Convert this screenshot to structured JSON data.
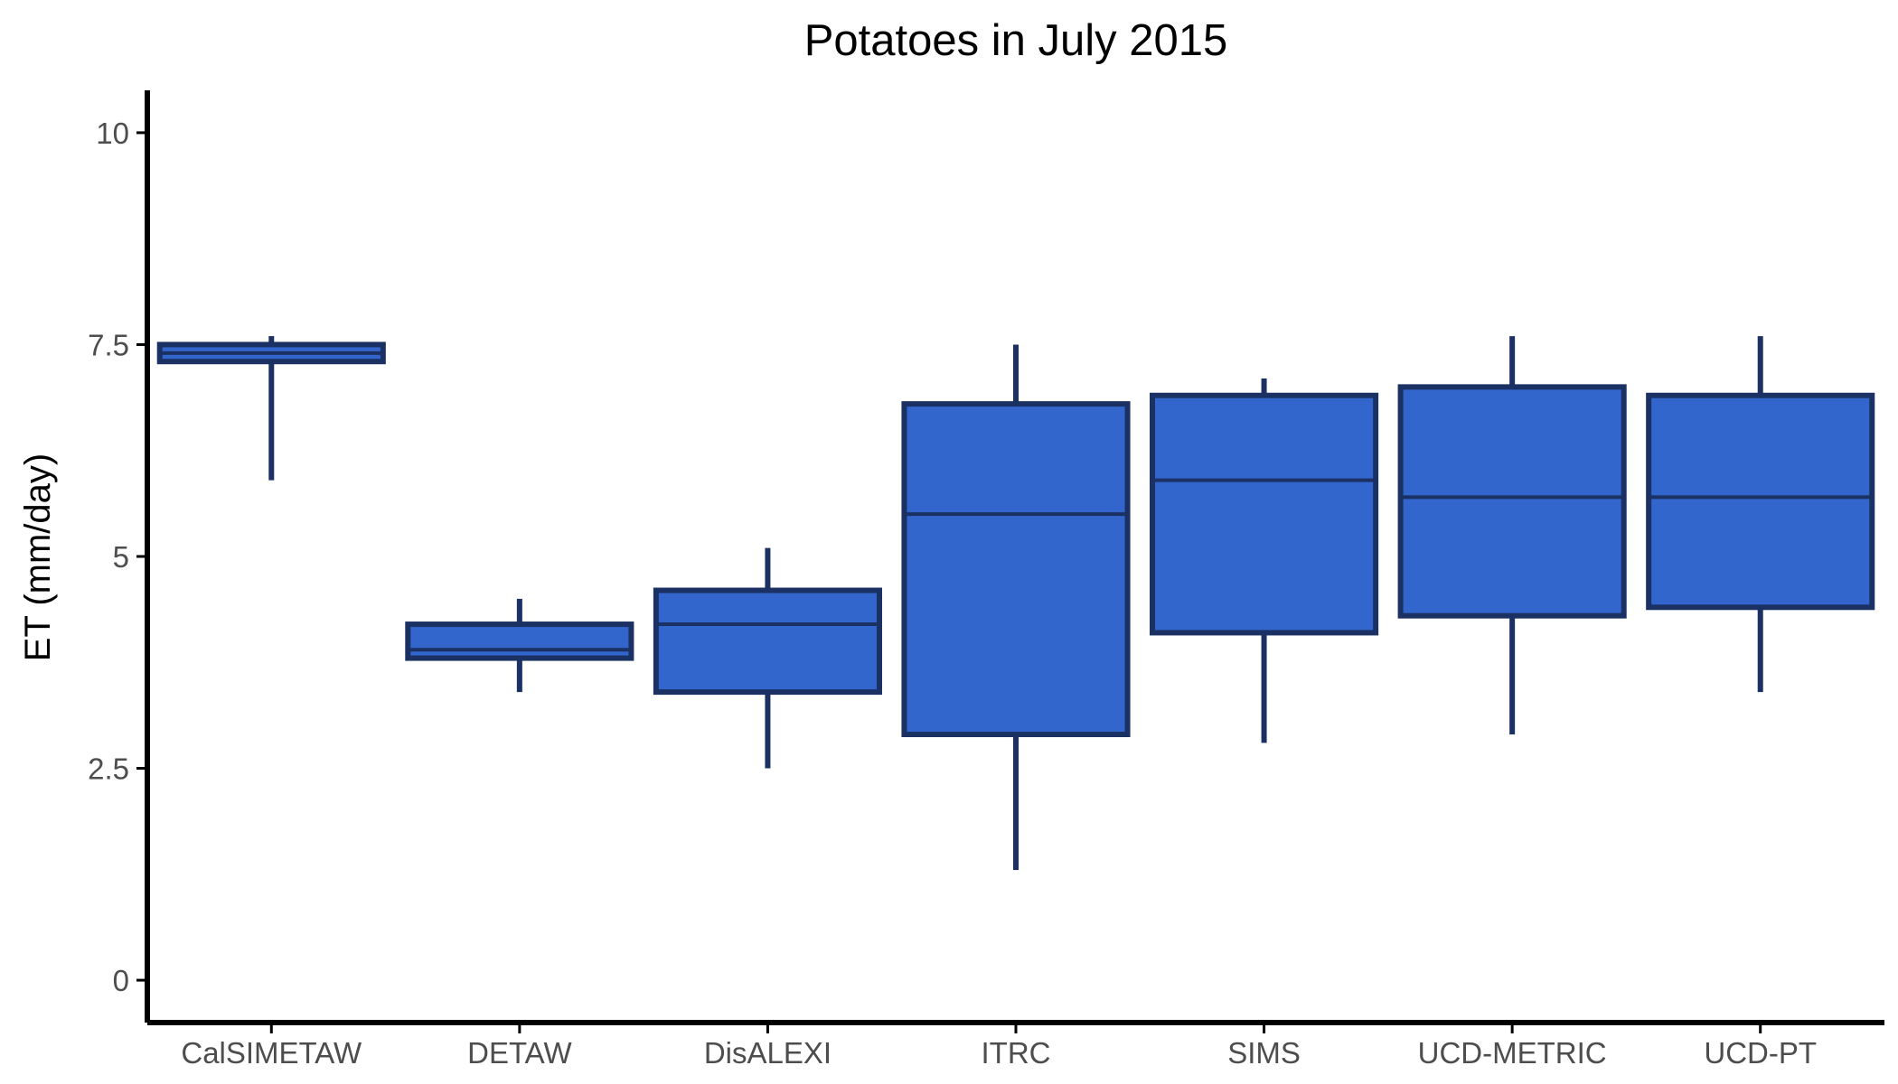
{
  "chart_data": {
    "type": "boxplot",
    "title": "Potatoes in July 2015",
    "xlabel": "",
    "ylabel": "ET (mm/day)",
    "ylim": [
      -0.5,
      10.5
    ],
    "yticks": [
      0,
      2.5,
      5,
      7.5,
      10
    ],
    "ytick_labels": [
      "0",
      "2.5",
      "5",
      "7.5",
      "10"
    ],
    "grid": false,
    "legend": "none",
    "categories": [
      "CalSIMETAW",
      "DETAW",
      "DisALEXI",
      "ITRC",
      "SIMS",
      "UCD-METRIC",
      "UCD-PT"
    ],
    "boxes": [
      {
        "category": "CalSIMETAW",
        "whisker_low": 5.9,
        "q1": 7.3,
        "median": 7.4,
        "q3": 7.5,
        "whisker_high": 7.6
      },
      {
        "category": "DETAW",
        "whisker_low": 3.4,
        "q1": 3.8,
        "median": 3.9,
        "q3": 4.2,
        "whisker_high": 4.5
      },
      {
        "category": "DisALEXI",
        "whisker_low": 2.5,
        "q1": 3.4,
        "median": 4.2,
        "q3": 4.6,
        "whisker_high": 5.1
      },
      {
        "category": "ITRC",
        "whisker_low": 1.3,
        "q1": 2.9,
        "median": 5.5,
        "q3": 6.8,
        "whisker_high": 7.5
      },
      {
        "category": "SIMS",
        "whisker_low": 2.8,
        "q1": 4.1,
        "median": 5.9,
        "q3": 6.9,
        "whisker_high": 7.1
      },
      {
        "category": "UCD-METRIC",
        "whisker_low": 2.9,
        "q1": 4.3,
        "median": 5.7,
        "q3": 7.0,
        "whisker_high": 7.6
      },
      {
        "category": "UCD-PT",
        "whisker_low": 3.4,
        "q1": 4.4,
        "median": 5.7,
        "q3": 6.9,
        "whisker_high": 7.6
      }
    ],
    "colors": {
      "box_fill": "#3366cc",
      "box_outline": "#1b3163",
      "axis": "#000000",
      "tick_text": "#4d4d4d"
    }
  }
}
